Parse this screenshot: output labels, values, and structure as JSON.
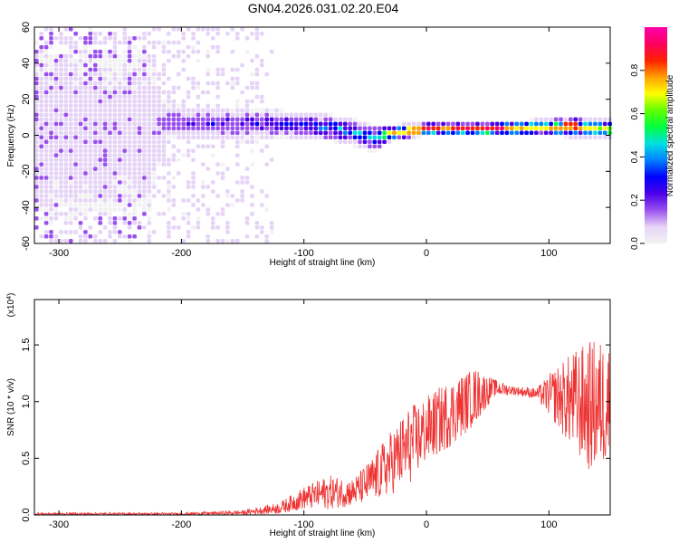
{
  "title": "GN04.2026.031.02.20.E04",
  "chart_data": [
    {
      "type": "heatmap",
      "xlabel": "Height of straight line (km)",
      "ylabel": "Frequency (Hz)",
      "xlim": [
        -320,
        150
      ],
      "ylim": [
        -60,
        60
      ],
      "x_ticks": [
        -300,
        -200,
        -100,
        0,
        100
      ],
      "y_ticks": [
        -60,
        -40,
        -20,
        0,
        20,
        40,
        60
      ],
      "colorbar": {
        "label": "Normalized spectral amplitude",
        "range": [
          0,
          1
        ],
        "ticks": [
          0.0,
          0.2,
          0.4,
          0.6,
          0.8
        ],
        "colors": [
          "#f2f2f2",
          "#e6d4f7",
          "#9a50ee",
          "#4a00e8",
          "#0000ff",
          "#0080ff",
          "#00e0e0",
          "#00ff40",
          "#60ff00",
          "#ffff00",
          "#ffa000",
          "#ff2000",
          "#ff0060",
          "#ff00aa"
        ]
      },
      "band": [
        {
          "x": -320,
          "center": 0,
          "halfwidth": 60,
          "peak": 0.1
        },
        {
          "x": -230,
          "center": 0,
          "halfwidth": 60,
          "peak": 0.1
        },
        {
          "x": -215,
          "center": 6,
          "halfwidth": 10,
          "peak": 0.2
        },
        {
          "x": -180,
          "center": 5,
          "halfwidth": 10,
          "peak": 0.25
        },
        {
          "x": -130,
          "center": 5,
          "halfwidth": 9,
          "peak": 0.3
        },
        {
          "x": -100,
          "center": 4,
          "halfwidth": 8,
          "peak": 0.35
        },
        {
          "x": -70,
          "center": 2,
          "halfwidth": 8,
          "peak": 0.45
        },
        {
          "x": -45,
          "center": -3,
          "halfwidth": 8,
          "peak": 0.45
        },
        {
          "x": -30,
          "center": 0,
          "halfwidth": 5,
          "peak": 0.7
        },
        {
          "x": 0,
          "center": 2,
          "halfwidth": 4,
          "peak": 0.85
        },
        {
          "x": 50,
          "center": 2,
          "halfwidth": 4,
          "peak": 0.95
        },
        {
          "x": 90,
          "center": 3,
          "halfwidth": 5,
          "peak": 0.7
        },
        {
          "x": 120,
          "center": 3,
          "halfwidth": 6,
          "peak": 0.85
        },
        {
          "x": 150,
          "center": 2,
          "halfwidth": 6,
          "peak": 0.6
        }
      ],
      "noise_region_x": [
        -320,
        -125
      ]
    },
    {
      "type": "line",
      "xlabel": "Height of straight line (km)",
      "ylabel": "SNR (10 * v/v)",
      "multiplier": "(x10",
      "multiplier_exp": "4",
      "multiplier_close": ")",
      "xlim": [
        -320,
        150
      ],
      "ylim": [
        0,
        1.9
      ],
      "x_ticks": [
        -300,
        -200,
        -100,
        0,
        100
      ],
      "y_ticks": [
        0.0,
        0.5,
        1.0,
        1.5
      ],
      "series": [
        {
          "color": "#ee3333",
          "envelope": [
            {
              "x": -320,
              "mean": 0.01,
              "spread": 0.01
            },
            {
              "x": -200,
              "mean": 0.01,
              "spread": 0.01
            },
            {
              "x": -150,
              "mean": 0.02,
              "spread": 0.02
            },
            {
              "x": -120,
              "mean": 0.06,
              "spread": 0.05
            },
            {
              "x": -100,
              "mean": 0.15,
              "spread": 0.1
            },
            {
              "x": -80,
              "mean": 0.2,
              "spread": 0.15
            },
            {
              "x": -60,
              "mean": 0.2,
              "spread": 0.12
            },
            {
              "x": -45,
              "mean": 0.3,
              "spread": 0.2
            },
            {
              "x": -30,
              "mean": 0.45,
              "spread": 0.28
            },
            {
              "x": -15,
              "mean": 0.6,
              "spread": 0.35
            },
            {
              "x": 0,
              "mean": 0.75,
              "spread": 0.3
            },
            {
              "x": 20,
              "mean": 0.9,
              "spread": 0.3
            },
            {
              "x": 40,
              "mean": 1.05,
              "spread": 0.25
            },
            {
              "x": 55,
              "mean": 1.12,
              "spread": 0.08
            },
            {
              "x": 70,
              "mean": 1.1,
              "spread": 0.04
            },
            {
              "x": 90,
              "mean": 1.07,
              "spread": 0.05
            },
            {
              "x": 105,
              "mean": 1.05,
              "spread": 0.25
            },
            {
              "x": 120,
              "mean": 1.0,
              "spread": 0.45
            },
            {
              "x": 135,
              "mean": 0.95,
              "spread": 0.6
            },
            {
              "x": 150,
              "mean": 1.0,
              "spread": 0.55
            }
          ]
        }
      ]
    }
  ]
}
